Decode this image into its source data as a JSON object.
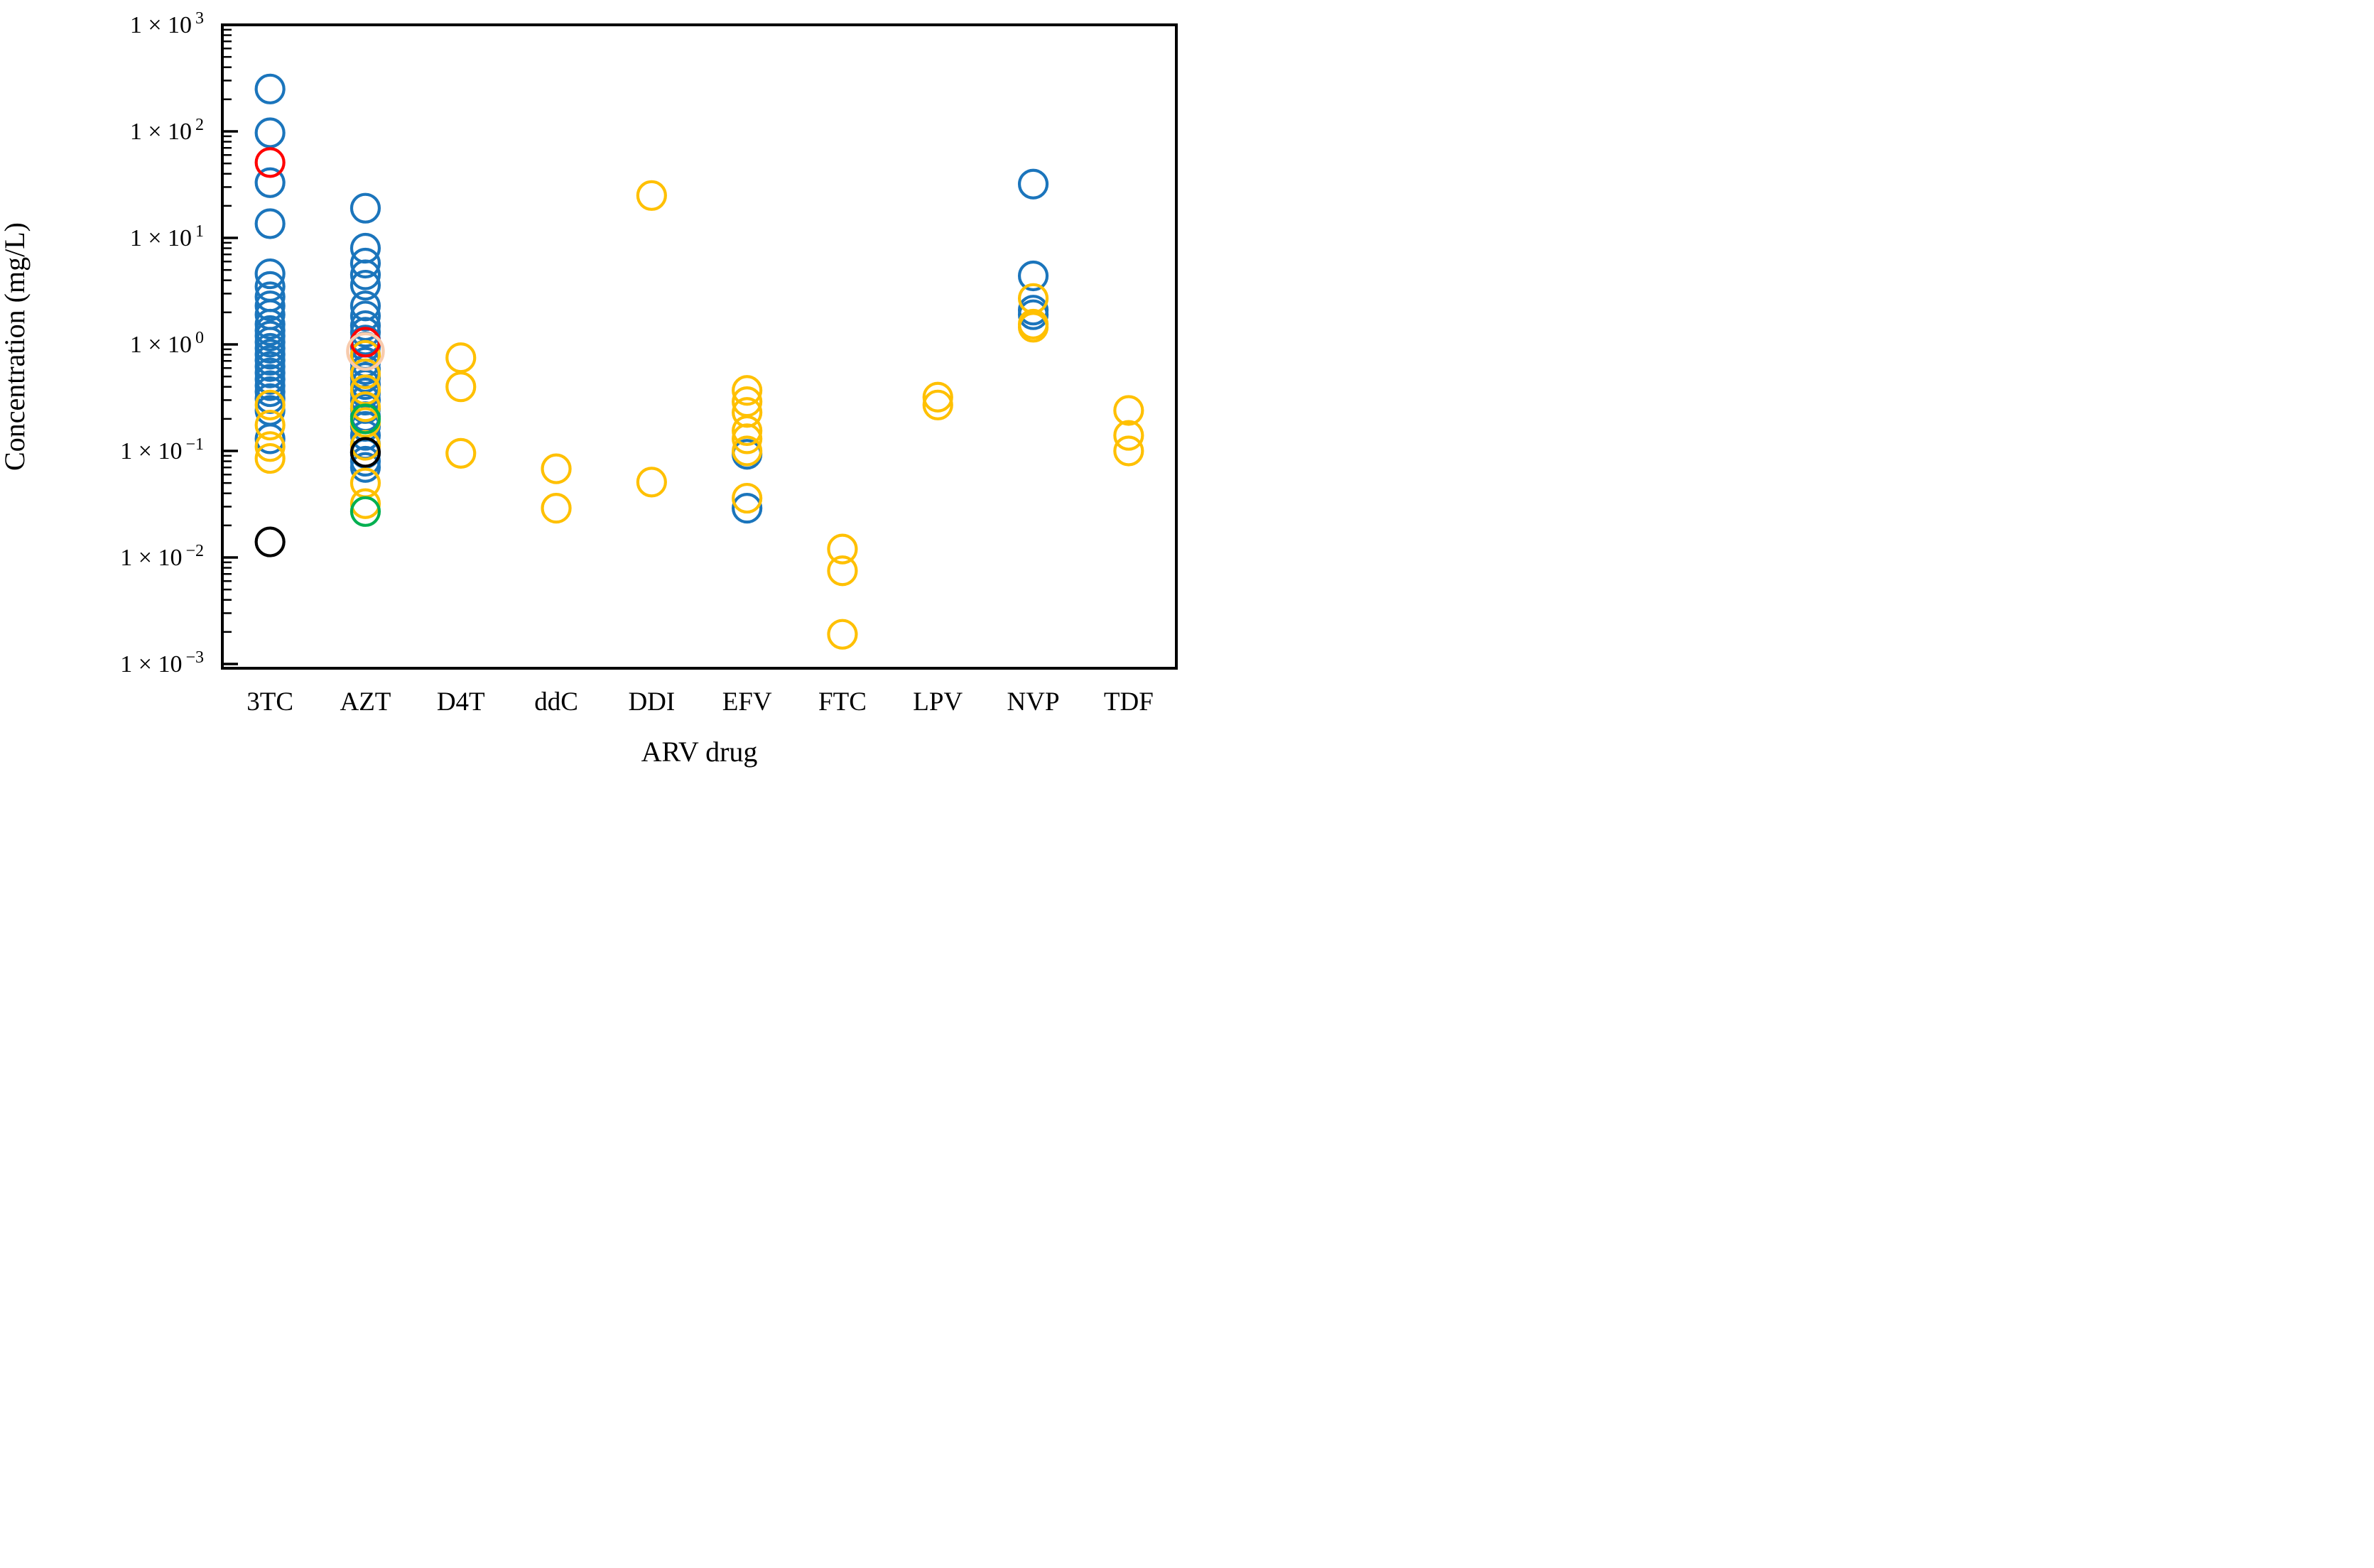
{
  "chart_data": {
    "type": "scatter",
    "title": "",
    "xlabel": "ARV drug",
    "ylabel": "Concentration (mg/L)",
    "y_scale": "log",
    "ylim": [
      0.00091,
      1000
    ],
    "grid": false,
    "legend_position": "none",
    "y_tick_mantissa": "1 × 10",
    "y_tick_exponents": [
      "3",
      "2",
      "1",
      "0",
      "−1",
      "−2",
      "−3"
    ],
    "y_tick_exponent_values": [
      3,
      2,
      1,
      0,
      -1,
      -2,
      -3
    ],
    "categories": [
      "3TC",
      "AZT",
      "D4T",
      "ddC",
      "DDI",
      "EFV",
      "FTC",
      "LPV",
      "NVP",
      "TDF"
    ],
    "marker": "open-circle",
    "series": [
      {
        "name": "blue-circles",
        "color": "#1B75BC",
        "points": [
          [
            "3TC",
            250
          ],
          [
            "3TC",
            97
          ],
          [
            "3TC",
            33
          ],
          [
            "3TC",
            13.6
          ],
          [
            "3TC",
            4.6
          ],
          [
            "3TC",
            3.5
          ],
          [
            "3TC",
            2.8
          ],
          [
            "3TC",
            2.3
          ],
          [
            "3TC",
            1.9
          ],
          [
            "3TC",
            1.55
          ],
          [
            "3TC",
            1.35
          ],
          [
            "3TC",
            1.2
          ],
          [
            "3TC",
            1.05
          ],
          [
            "3TC",
            0.92
          ],
          [
            "3TC",
            0.81
          ],
          [
            "3TC",
            0.71
          ],
          [
            "3TC",
            0.62
          ],
          [
            "3TC",
            0.54
          ],
          [
            "3TC",
            0.47
          ],
          [
            "3TC",
            0.41
          ],
          [
            "3TC",
            0.36
          ],
          [
            "3TC",
            0.31
          ],
          [
            "3TC",
            0.24
          ],
          [
            "3TC",
            0.13
          ],
          [
            "AZT",
            19
          ],
          [
            "AZT",
            8
          ],
          [
            "AZT",
            5.8
          ],
          [
            "AZT",
            4.5
          ],
          [
            "AZT",
            3.6
          ],
          [
            "AZT",
            2.3
          ],
          [
            "AZT",
            1.85
          ],
          [
            "AZT",
            1.5
          ],
          [
            "AZT",
            1.3
          ],
          [
            "AZT",
            1.1
          ],
          [
            "AZT",
            0.95
          ],
          [
            "AZT",
            0.8
          ],
          [
            "AZT",
            0.68
          ],
          [
            "AZT",
            0.58
          ],
          [
            "AZT",
            0.49
          ],
          [
            "AZT",
            0.42
          ],
          [
            "AZT",
            0.35
          ],
          [
            "AZT",
            0.3
          ],
          [
            "AZT",
            0.25
          ],
          [
            "AZT",
            0.21
          ],
          [
            "AZT",
            0.17
          ],
          [
            "AZT",
            0.14
          ],
          [
            "AZT",
            0.115
          ],
          [
            "AZT",
            0.095
          ],
          [
            "AZT",
            0.08
          ],
          [
            "AZT",
            0.07
          ],
          [
            "EFV",
            0.093
          ],
          [
            "EFV",
            0.029
          ],
          [
            "NVP",
            32
          ],
          [
            "NVP",
            4.4
          ],
          [
            "NVP",
            2.1
          ],
          [
            "NVP",
            1.9
          ]
        ]
      },
      {
        "name": "yellow-circles",
        "color": "#FFC000",
        "points": [
          [
            "3TC",
            0.27
          ],
          [
            "3TC",
            0.175
          ],
          [
            "3TC",
            0.11
          ],
          [
            "3TC",
            0.085
          ],
          [
            "AZT",
            0.79
          ],
          [
            "AZT",
            0.53
          ],
          [
            "AZT",
            0.375
          ],
          [
            "AZT",
            0.26
          ],
          [
            "AZT",
            0.185
          ],
          [
            "AZT",
            0.113
          ],
          [
            "AZT",
            0.05
          ],
          [
            "AZT",
            0.032
          ],
          [
            "D4T",
            0.75
          ],
          [
            "D4T",
            0.4
          ],
          [
            "D4T",
            0.095
          ],
          [
            "ddC",
            0.068
          ],
          [
            "ddC",
            0.029
          ],
          [
            "DDI",
            25
          ],
          [
            "DDI",
            0.051
          ],
          [
            "EFV",
            0.37
          ],
          [
            "EFV",
            0.29
          ],
          [
            "EFV",
            0.23
          ],
          [
            "EFV",
            0.155
          ],
          [
            "EFV",
            0.13
          ],
          [
            "EFV",
            0.1
          ],
          [
            "EFV",
            0.036
          ],
          [
            "FTC",
            0.012
          ],
          [
            "FTC",
            0.0075
          ],
          [
            "FTC",
            0.0019
          ],
          [
            "LPV",
            0.32
          ],
          [
            "LPV",
            0.27
          ],
          [
            "NVP",
            2.7
          ],
          [
            "NVP",
            1.55
          ],
          [
            "NVP",
            1.45
          ],
          [
            "TDF",
            0.24
          ],
          [
            "TDF",
            0.14
          ],
          [
            "TDF",
            0.1
          ]
        ]
      },
      {
        "name": "green-circles",
        "color": "#00B050",
        "points": [
          [
            "AZT",
            0.2
          ],
          [
            "AZT",
            0.027
          ]
        ]
      },
      {
        "name": "black-circles",
        "color": "#000000",
        "points": [
          [
            "3TC",
            0.014
          ],
          [
            "AZT",
            0.097
          ]
        ]
      },
      {
        "name": "red-circles",
        "color": "#FF0000",
        "points": [
          [
            "3TC",
            51
          ],
          [
            "AZT",
            1.05
          ]
        ]
      },
      {
        "name": "peach-circles",
        "color": "#F8CBAD",
        "points": [
          [
            "AZT",
            0.86
          ]
        ]
      }
    ]
  }
}
